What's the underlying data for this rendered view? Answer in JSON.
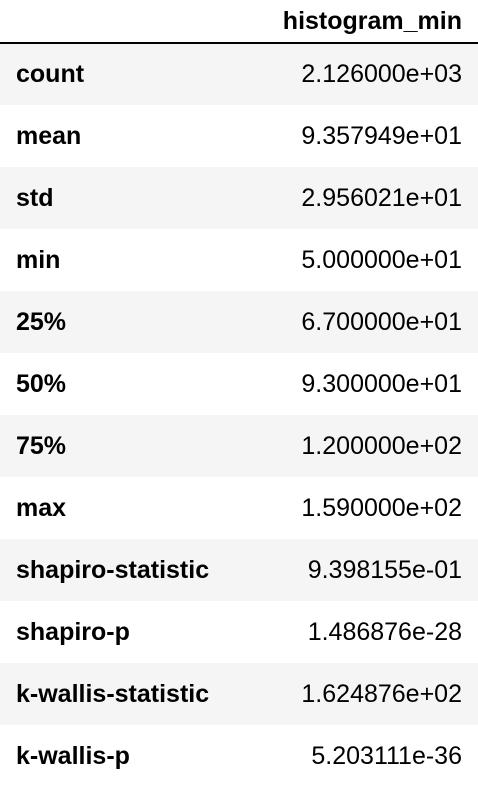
{
  "table": {
    "corner_label": "",
    "column_header": "histogram_min",
    "rows": [
      {
        "label": "count",
        "value": "2.126000e+03"
      },
      {
        "label": "mean",
        "value": "9.357949e+01"
      },
      {
        "label": "std",
        "value": "2.956021e+01"
      },
      {
        "label": "min",
        "value": "5.000000e+01"
      },
      {
        "label": "25%",
        "value": "6.700000e+01"
      },
      {
        "label": "50%",
        "value": "9.300000e+01"
      },
      {
        "label": "75%",
        "value": "1.200000e+02"
      },
      {
        "label": "max",
        "value": "1.590000e+02"
      },
      {
        "label": "shapiro-statistic",
        "value": "9.398155e-01"
      },
      {
        "label": "shapiro-p",
        "value": "1.486876e-28"
      },
      {
        "label": "k-wallis-statistic",
        "value": "1.624876e+02"
      },
      {
        "label": "k-wallis-p",
        "value": "5.203111e-36"
      }
    ]
  }
}
